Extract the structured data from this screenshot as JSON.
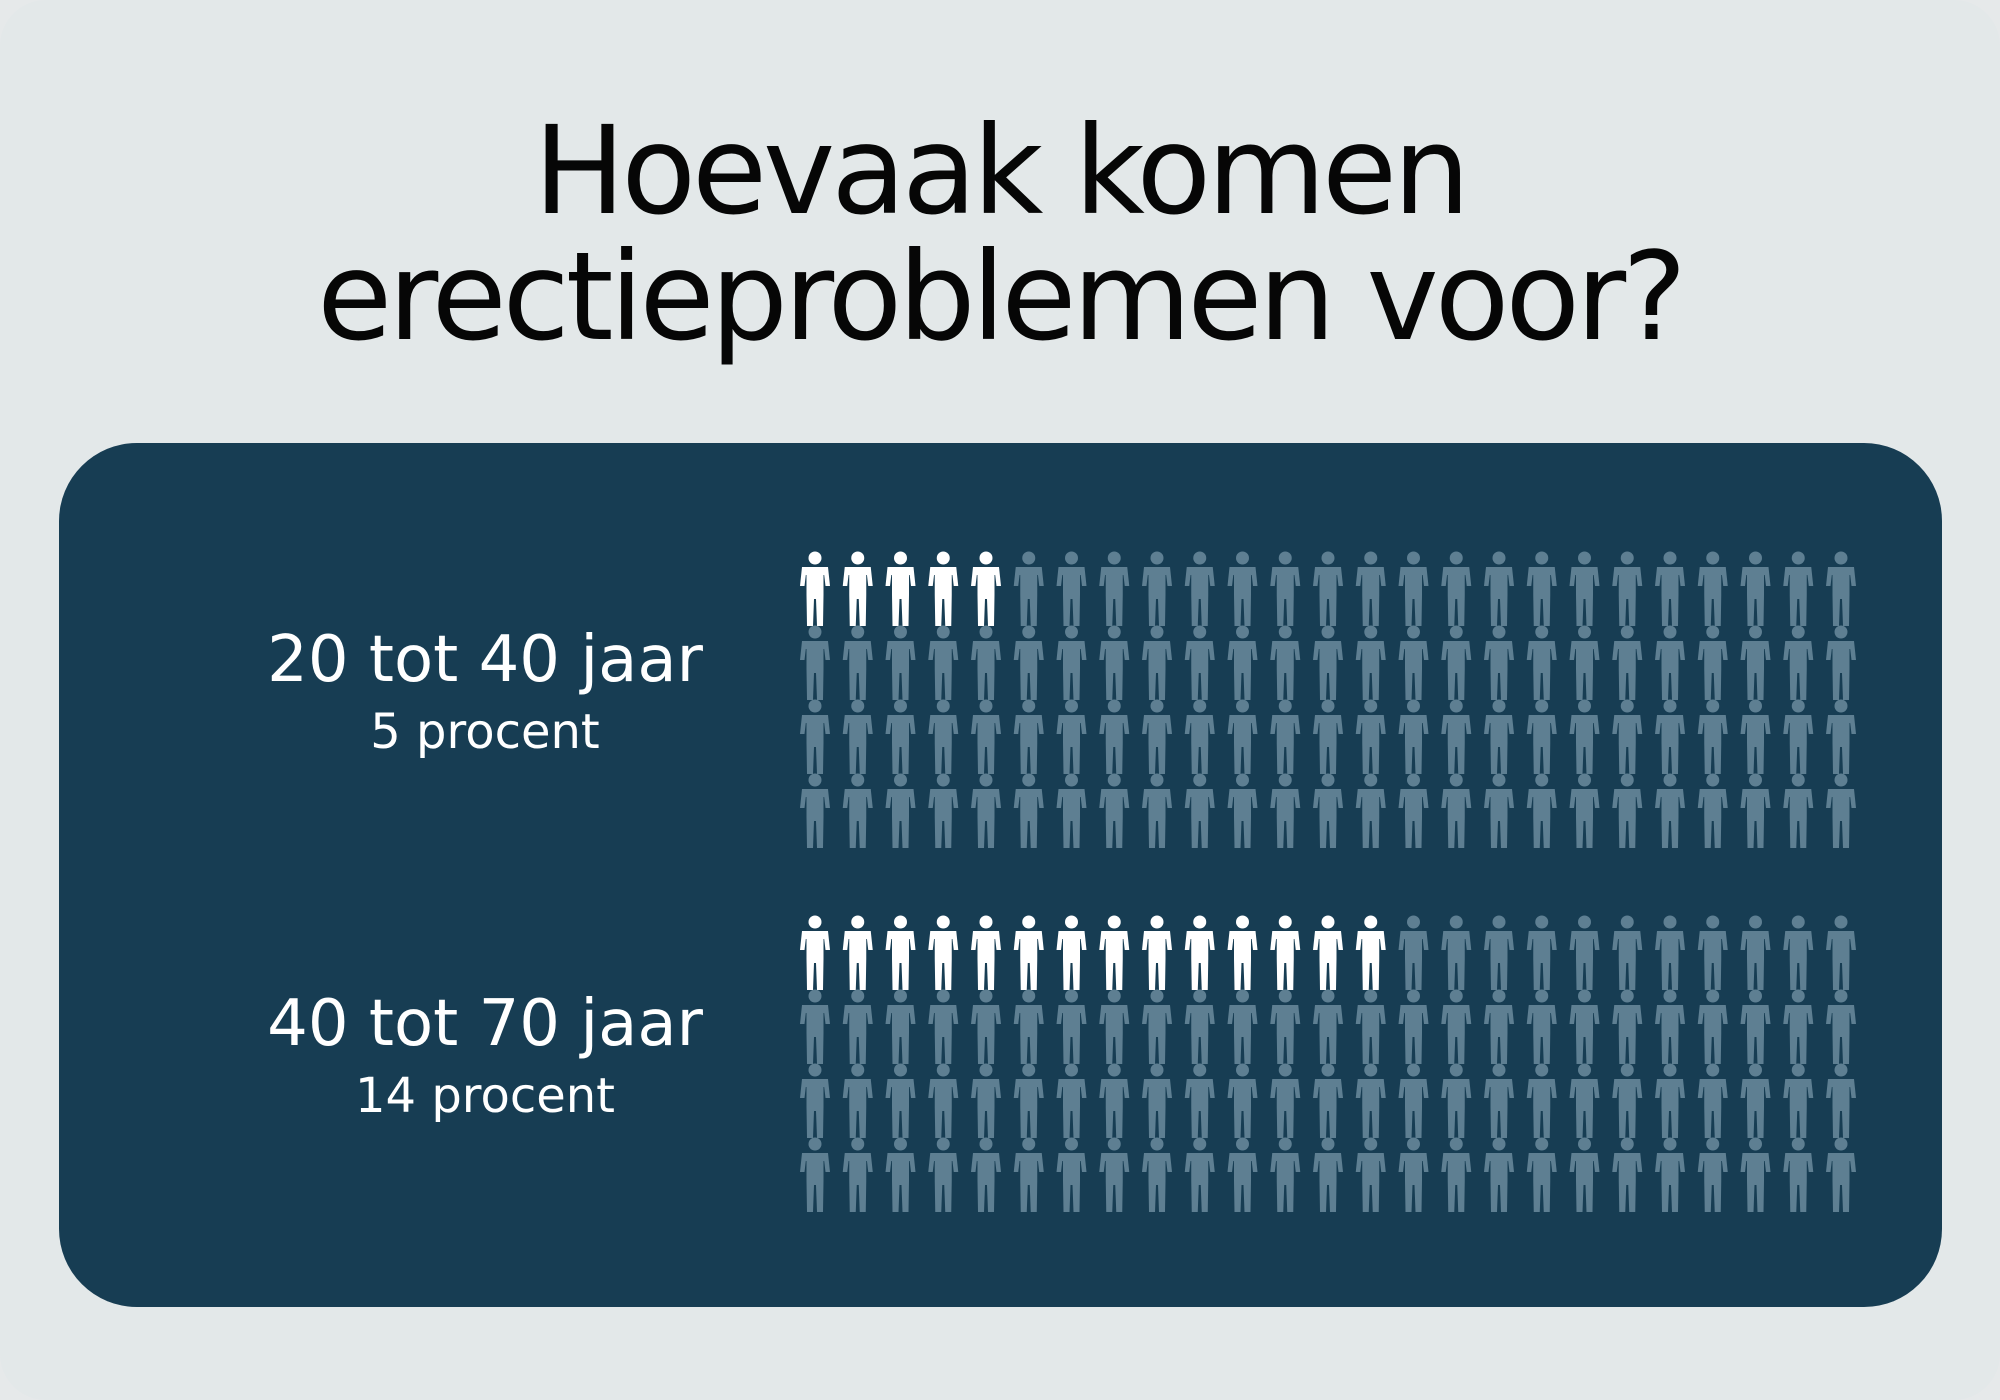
{
  "title": [
    "Hoevaak komen",
    "erectieproblemen voor?"
  ],
  "colors": {
    "background": "#e3e8e9",
    "panel": "#173d53",
    "highlight": "#ffffff",
    "base": "#5e7f92"
  },
  "chart_data": {
    "type": "pictogram",
    "icon": "person-icon",
    "total_per_group": 100,
    "groups": [
      {
        "age_label": "20 tot 40 jaar",
        "percent_label": "5 procent",
        "value": 5
      },
      {
        "age_label": "40 tot 70 jaar",
        "percent_label": "14 procent",
        "value": 14
      }
    ]
  }
}
